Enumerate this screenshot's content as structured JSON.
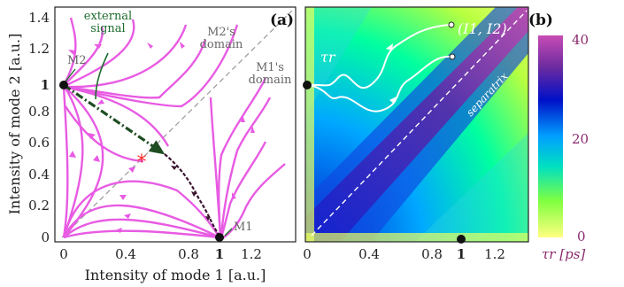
{
  "panel_a": {
    "label": "(a)",
    "xlabel": "Intensity of mode 1 [a.u.]",
    "ylabel": "Intensity of mode 2 [a.u.]",
    "xticks": [
      "0",
      "0.4",
      "0.8",
      "1",
      "1.2"
    ],
    "yticks": [
      "0",
      "0.2",
      "0.4",
      "0.6",
      "0.8",
      "1",
      "1.2",
      "1.4"
    ],
    "annotations": {
      "external_signal": [
        "external",
        "signal"
      ],
      "m2_domain": [
        "M2's",
        "domain"
      ],
      "m1_domain": [
        "M1's",
        "domain"
      ],
      "m2": "M2",
      "m1": "M1"
    },
    "colors": {
      "trajectory": "#e85be3",
      "external": "#1e4d22",
      "fixed_point": "#ff2a2a"
    }
  },
  "panel_b": {
    "label": "(b)",
    "xticks": [
      "0",
      "0.4",
      "0.8",
      "1",
      "1.2"
    ],
    "point_label": "(I1, I2)",
    "tau_label": "τr",
    "separatrix": "separatrix",
    "colorbar": {
      "ticks": [
        "40",
        "20",
        "0"
      ],
      "label": "τr [ps]",
      "colors": [
        "#ffff80",
        "#00ff40",
        "#00c0ff",
        "#0000c0",
        "#7a2a9a",
        "#c047b0"
      ]
    }
  }
}
